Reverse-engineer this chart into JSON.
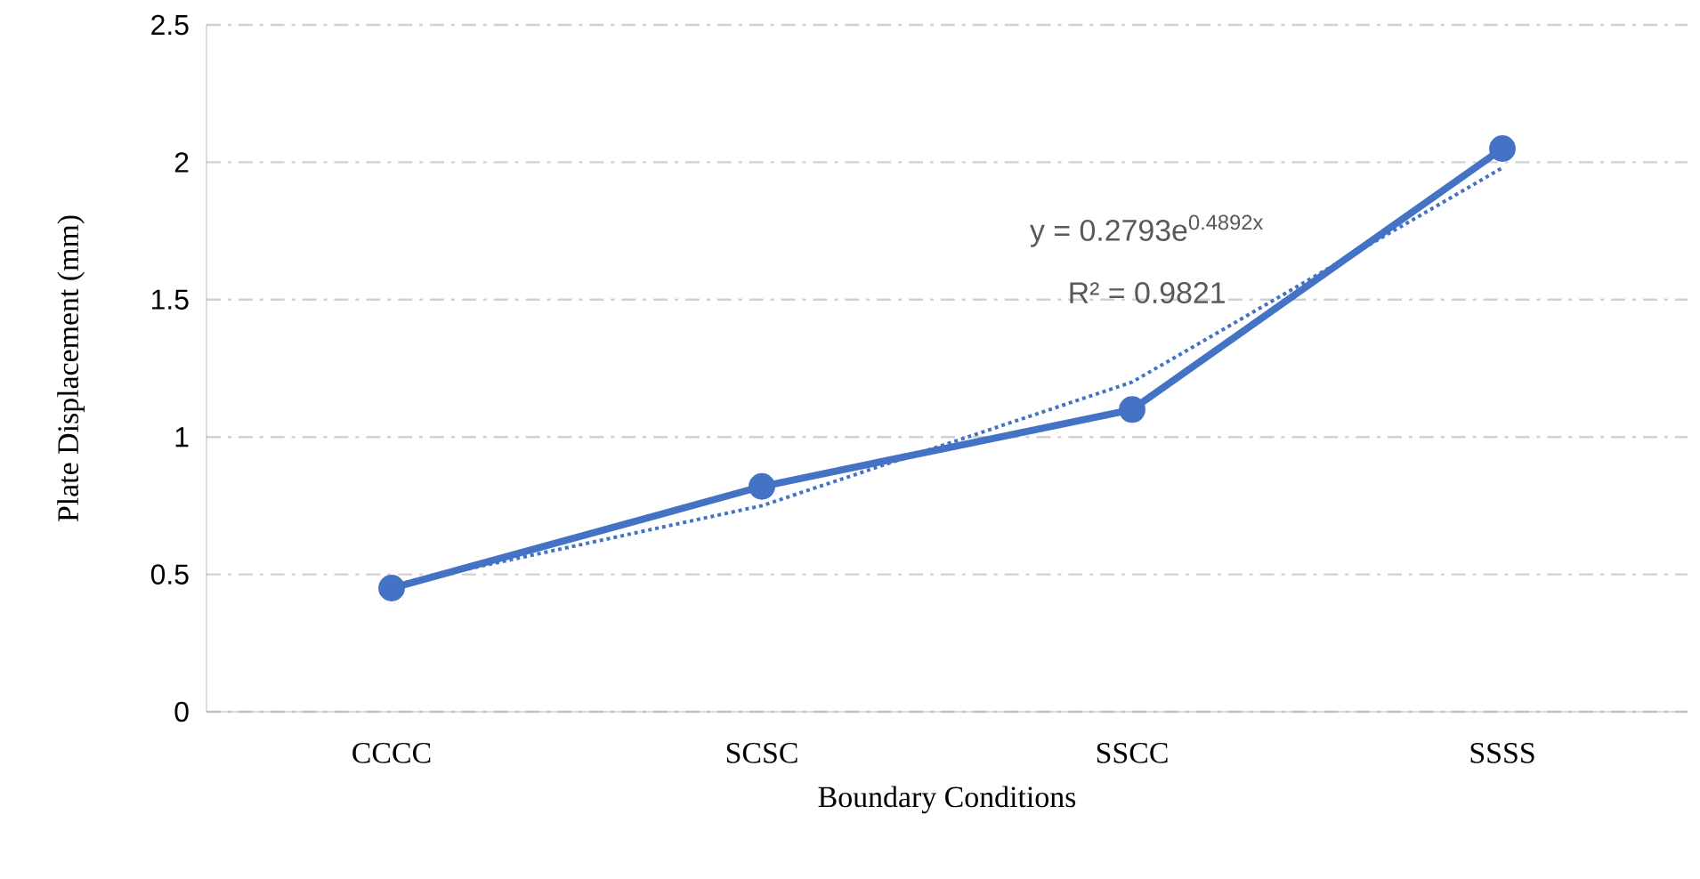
{
  "chart_data": {
    "type": "line",
    "xlabel": "Boundary Conditions",
    "ylabel": "Plate Displacement (mm)",
    "categories": [
      "CCCC",
      "SCSC",
      "SSCC",
      "SSSS"
    ],
    "series": [
      {
        "color": "#4472c4",
        "values": [
          0.45,
          0.82,
          1.1,
          2.05
        ]
      },
      {
        "color": "#4472c4",
        "values": [
          0.46,
          0.75,
          1.2,
          1.98
        ],
        "marker": "none",
        "line_style": "dotted"
      }
    ],
    "ylim": [
      0,
      2.5
    ],
    "yticks": [
      0,
      0.5,
      1,
      1.5,
      2,
      2.5
    ],
    "grid": "y",
    "marker": "circle",
    "line_style": "solid",
    "annotations": [
      "y = 0.2793e$^{0.4892x}$",
      "R² = 0.9821"
    ]
  }
}
